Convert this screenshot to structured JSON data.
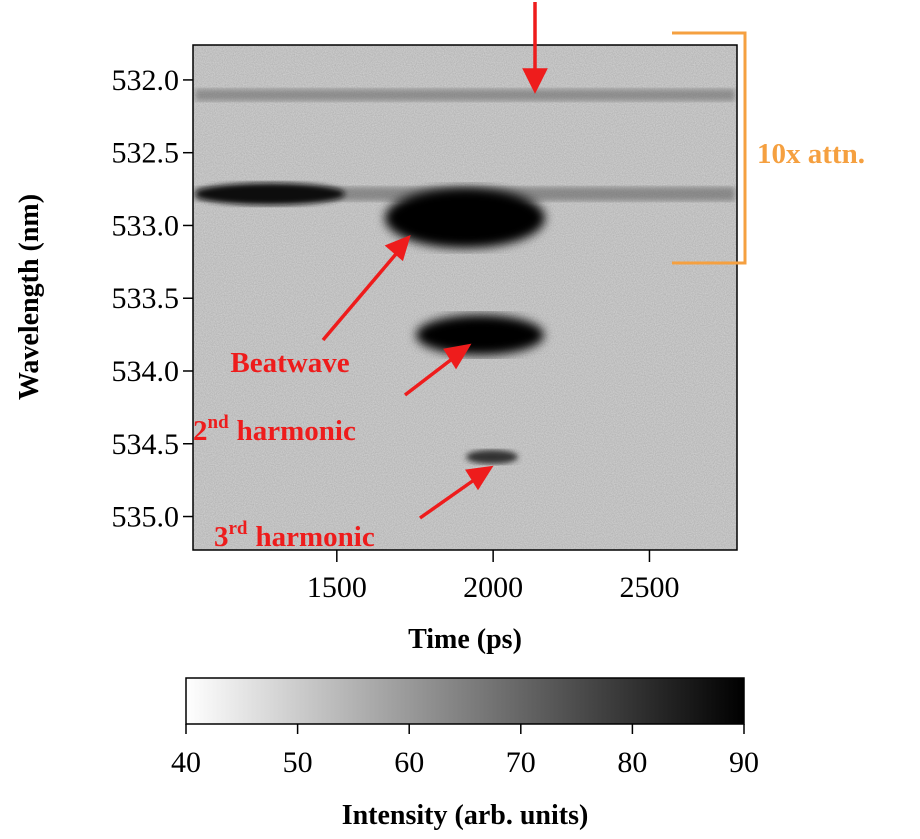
{
  "chart_data": {
    "type": "image",
    "xlabel": "Time (ps)",
    "ylabel": "Wavelength (nm)",
    "xlim": [
      1040,
      2780
    ],
    "xticks": [
      1500,
      2000,
      2500
    ],
    "ylim": [
      531.76,
      535.23
    ],
    "y_inverted": true,
    "yticks": [
      {
        "value": 532,
        "label": "532.0"
      },
      {
        "value": 532.5,
        "label": "532.5"
      },
      {
        "value": 533,
        "label": "533.0"
      },
      {
        "value": 533.5,
        "label": "533.5"
      },
      {
        "value": 534,
        "label": "534.0"
      },
      {
        "value": 534.5,
        "label": "534.5"
      },
      {
        "value": 535,
        "label": "535.0"
      }
    ],
    "colorbar": {
      "label": "Intensity (arb. units)",
      "lim": [
        40,
        90
      ],
      "ticks": [
        40,
        50,
        60,
        70,
        80,
        90
      ],
      "colors": [
        "#ffffff",
        "#000000"
      ]
    },
    "annotations": [
      {
        "text": "Beatwave",
        "color": "#ee1c1c"
      },
      {
        "number": "2",
        "sup": "nd",
        "text": "harmonic",
        "color": "#ee1c1c"
      },
      {
        "number": "3",
        "sup": "rd",
        "text": "harmonic",
        "color": "#ee1c1c"
      },
      {
        "text": "10x attn.",
        "color": "#f5a040"
      }
    ]
  }
}
